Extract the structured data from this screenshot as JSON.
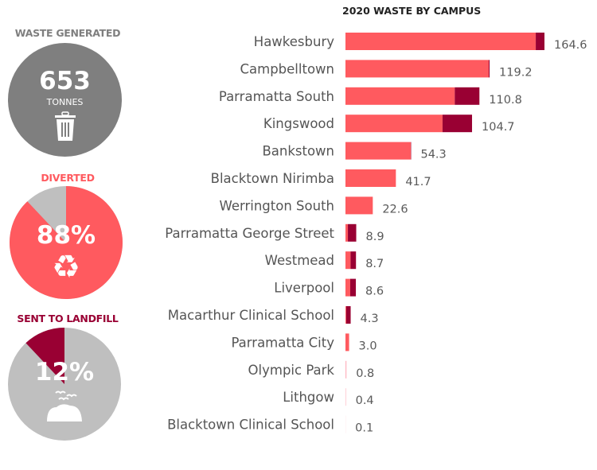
{
  "kpis": {
    "generated": {
      "title": "WASTE GENERATED",
      "value": "653",
      "unit": "TONNES",
      "icon": "trash-bin-icon",
      "color": "#7f7f7f"
    },
    "diverted": {
      "title": "DIVERTED",
      "value": "88%",
      "percent": 88,
      "icon": "recycle-icon",
      "color": "#ff5a5f"
    },
    "landfill": {
      "title": "SENT TO LANDFILL",
      "value": "12%",
      "percent": 12,
      "icon": "landfill-birds-icon",
      "color": "#990033"
    }
  },
  "chart_data": {
    "type": "bar",
    "orientation": "horizontal",
    "stacked": true,
    "title": "2020 WASTE BY CAMPUS",
    "categories": [
      "Hawkesbury",
      "Campbelltown",
      "Parramatta South",
      "Kingswood",
      "Bankstown",
      "Blacktown Nirimba",
      "Werrington South",
      "Parramatta George Street",
      "Westmead",
      "Liverpool",
      "Macarthur Clinical School",
      "Parramatta City",
      "Olympic Park",
      "Lithgow",
      "Blacktown Clinical School"
    ],
    "totals": [
      164.6,
      119.2,
      110.8,
      104.7,
      54.3,
      41.7,
      22.6,
      8.9,
      8.7,
      8.6,
      4.3,
      3.0,
      0.8,
      0.4,
      0.1
    ],
    "total_labels": [
      "164.6",
      "119.2",
      "110.8",
      "104.7",
      "54.3",
      "41.7",
      "22.6",
      "8.9",
      "8.7",
      "8.6",
      "4.3",
      "3.0",
      "0.8",
      "0.4",
      "0.1"
    ],
    "series": [
      {
        "values": [
          157.4,
          118.5,
          90.4,
          80.3,
          54.0,
          41.7,
          22.6,
          2.0,
          4.2,
          3.9,
          0.6,
          3.0,
          0.8,
          0.4,
          0.1
        ],
        "color": "#ff5a5f"
      },
      {
        "values": [
          7.2,
          0.7,
          20.4,
          24.4,
          0.3,
          0.0,
          0.0,
          6.9,
          4.5,
          4.7,
          3.7,
          0.0,
          0.0,
          0.0,
          0.0
        ],
        "color": "#990033"
      }
    ],
    "xlim": [
      0,
      164.6
    ],
    "grid": false,
    "legend": "none"
  }
}
